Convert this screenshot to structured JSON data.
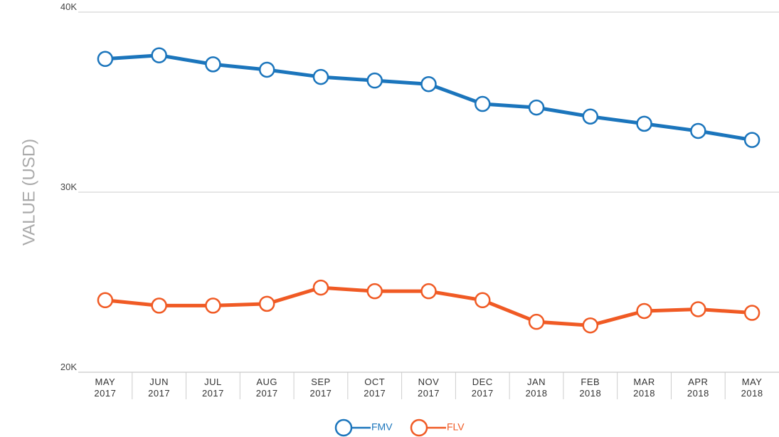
{
  "chart_data": {
    "type": "line",
    "y_label": "VALUE (USD)",
    "categories": [
      "MAY 2017",
      "JUN 2017",
      "JUL 2017",
      "AUG 2017",
      "SEP 2017",
      "OCT 2017",
      "NOV 2017",
      "DEC 2017",
      "JAN 2018",
      "FEB 2018",
      "MAR 2018",
      "APR 2018",
      "MAY 2018"
    ],
    "series": [
      {
        "name": "FMV",
        "color": "#1b75bc",
        "values": [
          37400,
          37600,
          37100,
          36800,
          36400,
          36200,
          36000,
          34900,
          34700,
          34200,
          33800,
          33400,
          32900
        ]
      },
      {
        "name": "FLV",
        "color": "#f05a24",
        "values": [
          24000,
          23700,
          23700,
          23800,
          24700,
          24500,
          24500,
          24000,
          22800,
          22600,
          23400,
          23500,
          23300
        ]
      }
    ],
    "ylim": [
      20000,
      40000
    ],
    "yticks": [
      {
        "value": 20000,
        "label": "20K"
      },
      {
        "value": 30000,
        "label": "30K"
      },
      {
        "value": 40000,
        "label": "40K"
      }
    ],
    "grid": true,
    "legend": "bottom"
  }
}
